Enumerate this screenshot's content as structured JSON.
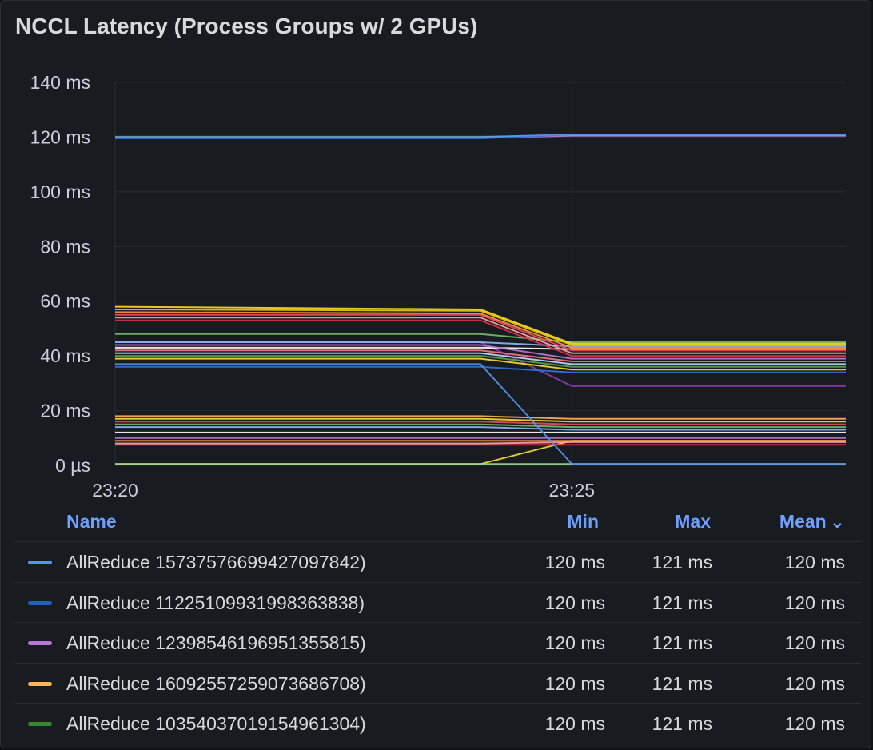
{
  "panel": {
    "title": "NCCL Latency (Process Groups w/ 2 GPUs)"
  },
  "chart_data": {
    "type": "line",
    "title": "NCCL Latency (Process Groups w/ 2 GPUs)",
    "y_unit": "ms",
    "ylim": [
      0,
      140
    ],
    "y_ticks": [
      {
        "value": 140,
        "label": "140 ms"
      },
      {
        "value": 120,
        "label": "120 ms"
      },
      {
        "value": 100,
        "label": "100 ms"
      },
      {
        "value": 80,
        "label": "80 ms"
      },
      {
        "value": 60,
        "label": "60 ms"
      },
      {
        "value": 40,
        "label": "40 ms"
      },
      {
        "value": 20,
        "label": "20 ms"
      },
      {
        "value": 0,
        "label": "0 µs"
      }
    ],
    "x_ticks": [
      {
        "value": "23:20",
        "label": "23:20"
      },
      {
        "value": "23:25",
        "label": "23:25"
      }
    ],
    "xlim": [
      "23:20",
      "23:28"
    ],
    "x_points": [
      "23:20",
      "23:24",
      "23:25",
      "23:28"
    ],
    "grid": true,
    "legend_placement": "bottom",
    "series": [
      {
        "name": "AllReduce 1573757669942709784​2)",
        "color": "#5794f2",
        "values": [
          120,
          120,
          121,
          121
        ]
      },
      {
        "name": "AllReduce 1122510993199836383​8)",
        "color": "#1f60c4",
        "values": [
          119.5,
          119.5,
          121,
          121
        ]
      },
      {
        "name": "AllReduce 1239854619695135581​5)",
        "color": "#b877d9",
        "values": [
          119.7,
          119.7,
          120.5,
          120.5
        ]
      },
      {
        "name": "AllReduce 1609255725907368670​8)",
        "color": "#ffb357",
        "values": [
          120,
          120,
          120.8,
          120.8
        ]
      },
      {
        "name": "AllReduce 1035403701915496130​4)",
        "color": "#37872d",
        "values": [
          120.2,
          120.2,
          120.6,
          120.6
        ]
      },
      {
        "color": "#fade2a",
        "values": [
          58,
          57,
          44.5,
          44.5
        ]
      },
      {
        "color": "#f2cc0c",
        "values": [
          57,
          56.5,
          44,
          44
        ]
      },
      {
        "color": "#ff9830",
        "values": [
          56,
          55.5,
          43,
          43
        ]
      },
      {
        "color": "#f2495c",
        "values": [
          55,
          55,
          42,
          42
        ]
      },
      {
        "color": "#fda4af",
        "values": [
          54,
          54,
          41,
          41
        ]
      },
      {
        "color": "#e02f44",
        "values": [
          53,
          53,
          40,
          40
        ]
      },
      {
        "color": "#73bf69",
        "values": [
          48,
          48,
          45,
          45
        ]
      },
      {
        "color": "#8ab8ff",
        "values": [
          45,
          45,
          43.5,
          43.5
        ]
      },
      {
        "color": "#b877d9",
        "values": [
          44,
          44,
          39,
          39
        ]
      },
      {
        "color": "#ffffff",
        "values": [
          43,
          43,
          42.5,
          42.5
        ]
      },
      {
        "color": "#ff7383",
        "values": [
          42,
          42,
          38,
          38
        ]
      },
      {
        "color": "#c0d8ff",
        "values": [
          41,
          41,
          37,
          37
        ]
      },
      {
        "color": "#56a64b",
        "values": [
          40,
          40,
          36,
          36
        ]
      },
      {
        "color": "#fade2a",
        "values": [
          39,
          39,
          35,
          35
        ]
      },
      {
        "color": "#5794f2",
        "values": [
          37,
          37,
          0.5,
          0.5
        ]
      },
      {
        "color": "#3274d9",
        "values": [
          36,
          36,
          34,
          34
        ]
      },
      {
        "color": "#8f3bb8",
        "values": [
          45,
          45,
          29,
          29
        ]
      },
      {
        "color": "#ffb357",
        "values": [
          18,
          18,
          17,
          17
        ]
      },
      {
        "color": "#fade2a",
        "values": [
          17,
          17,
          16,
          16
        ]
      },
      {
        "color": "#f2495c",
        "values": [
          16,
          16,
          15,
          15
        ]
      },
      {
        "color": "#73bf69",
        "values": [
          15,
          15,
          14,
          14
        ]
      },
      {
        "color": "#8ab8ff",
        "values": [
          14,
          14,
          13,
          13
        ]
      },
      {
        "color": "#ffffff",
        "values": [
          12,
          12,
          12,
          12
        ]
      },
      {
        "color": "#b877d9",
        "values": [
          10,
          10,
          10,
          10
        ]
      },
      {
        "color": "#ff9830",
        "values": [
          9,
          9,
          9,
          9
        ]
      },
      {
        "color": "#fda4af",
        "values": [
          8,
          8,
          8.5,
          8.5
        ]
      },
      {
        "color": "#e02f44",
        "values": [
          7.5,
          7.5,
          7.5,
          7.5
        ]
      },
      {
        "color": "#96d98d",
        "values": [
          0.5,
          0.5,
          0.5,
          0.5
        ]
      },
      {
        "color": "#fade2a",
        "values": [
          0.5,
          0.5,
          9,
          9
        ]
      }
    ]
  },
  "legend": {
    "headers": {
      "name": "Name",
      "min": "Min",
      "max": "Max",
      "mean": "Mean",
      "sort_icon": "chevron-down-icon"
    },
    "rows": [
      {
        "name": "AllReduce 15737576699427097842)",
        "color": "#5794f2",
        "min": "120 ms",
        "max": "121 ms",
        "mean": "120 ms"
      },
      {
        "name": "AllReduce 11225109931998363838)",
        "color": "#1f60c4",
        "min": "120 ms",
        "max": "121 ms",
        "mean": "120 ms"
      },
      {
        "name": "AllReduce 12398546196951355815)",
        "color": "#b877d9",
        "min": "120 ms",
        "max": "121 ms",
        "mean": "120 ms"
      },
      {
        "name": "AllReduce 16092557259073686708)",
        "color": "#ffb357",
        "min": "120 ms",
        "max": "121 ms",
        "mean": "120 ms"
      },
      {
        "name": "AllReduce 10354037019154961304)",
        "color": "#37872d",
        "min": "120 ms",
        "max": "121 ms",
        "mean": "120 ms"
      }
    ]
  }
}
